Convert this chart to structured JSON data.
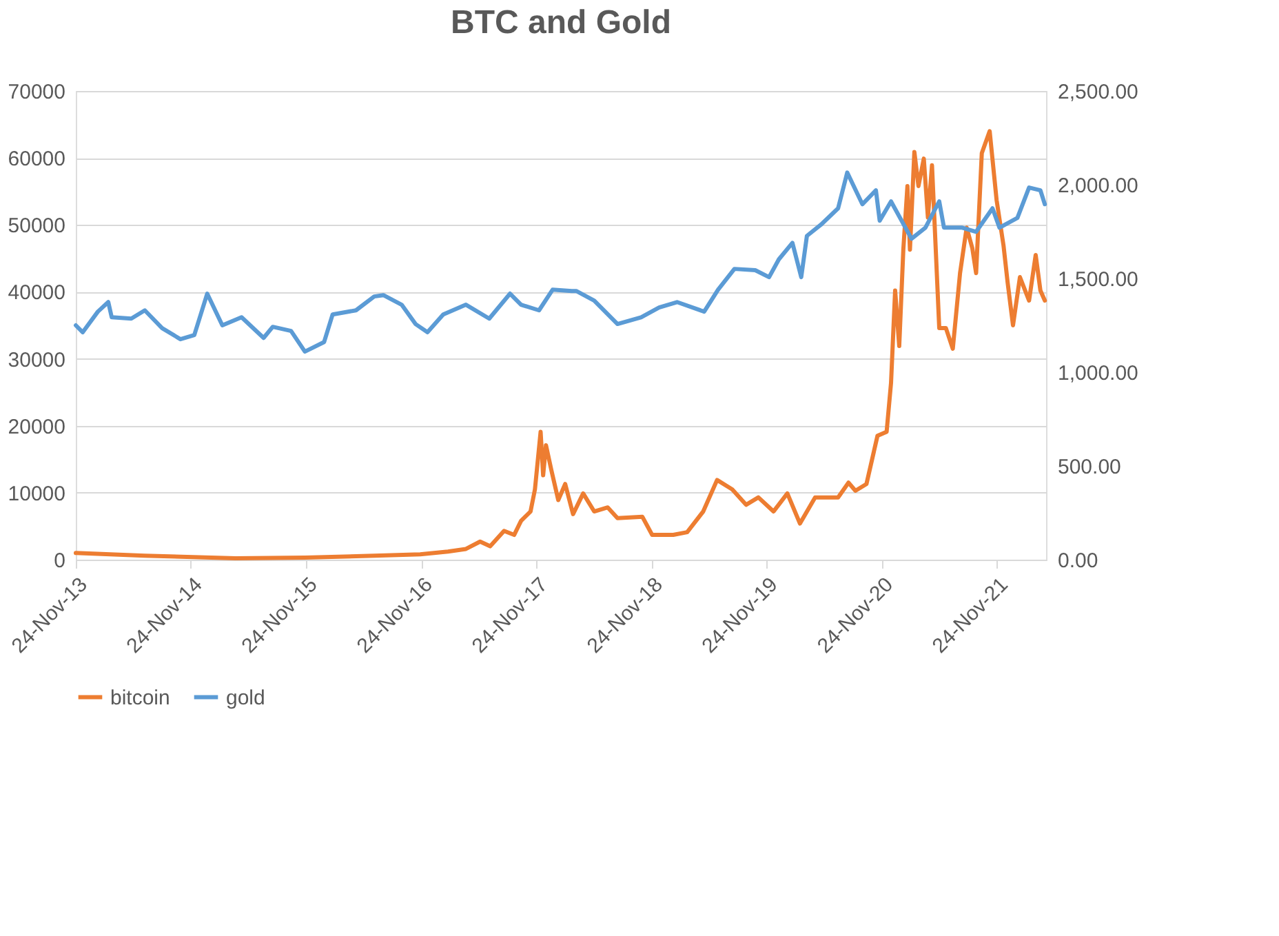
{
  "chart_data": {
    "type": "line",
    "title": "BTC and Gold",
    "xlim": [
      "2013-11-24",
      "2022-04-30"
    ],
    "xticks": [
      {
        "value": "2013-11-24",
        "label": "24-Nov-13"
      },
      {
        "value": "2014-11-24",
        "label": "24-Nov-14"
      },
      {
        "value": "2015-11-24",
        "label": "24-Nov-15"
      },
      {
        "value": "2016-11-24",
        "label": "24-Nov-16"
      },
      {
        "value": "2017-11-24",
        "label": "24-Nov-17"
      },
      {
        "value": "2018-11-24",
        "label": "24-Nov-18"
      },
      {
        "value": "2019-11-24",
        "label": "24-Nov-19"
      },
      {
        "value": "2020-11-24",
        "label": "24-Nov-20"
      },
      {
        "value": "2021-11-24",
        "label": "24-Nov-21"
      }
    ],
    "ylim": [
      0,
      70000
    ],
    "yticks": [
      0,
      10000,
      20000,
      30000,
      40000,
      50000,
      60000,
      70000
    ],
    "y2lim": [
      0,
      2500
    ],
    "y2ticks": [
      {
        "value": 0,
        "label": "0.00"
      },
      {
        "value": 500,
        "label": "500.00"
      },
      {
        "value": 1000,
        "label": "1,000.00"
      },
      {
        "value": 1500,
        "label": "1,500.00"
      },
      {
        "value": 2000,
        "label": "2,000.00"
      },
      {
        "value": 2500,
        "label": "2,500.00"
      }
    ],
    "grid": "y",
    "legend": "bottom",
    "marker": "none",
    "line_style": "solid",
    "series": [
      {
        "name": "bitcoin",
        "color": "#ed7d31",
        "axis": "y",
        "x": [
          "2013-11-24",
          "2014-07-01",
          "2015-04-15",
          "2015-11-21",
          "2016-06-28",
          "2016-11-21",
          "2017-02-17",
          "2017-04-15",
          "2017-05-30",
          "2017-07-01",
          "2017-08-14",
          "2017-09-15",
          "2017-10-07",
          "2017-11-06",
          "2017-11-20",
          "2017-12-08",
          "2017-12-16",
          "2017-12-25",
          "2018-01-11",
          "2018-02-02",
          "2018-02-24",
          "2018-03-21",
          "2018-04-22",
          "2018-05-27",
          "2018-07-09",
          "2018-08-09",
          "2018-10-27",
          "2018-11-27",
          "2019-02-02",
          "2019-03-18",
          "2019-05-08",
          "2019-06-21",
          "2019-08-08",
          "2019-09-21",
          "2019-10-30",
          "2019-12-17",
          "2020-01-30",
          "2020-03-10",
          "2020-04-27",
          "2020-07-09",
          "2020-08-11",
          "2020-09-02",
          "2020-10-07",
          "2020-11-11",
          "2020-12-10",
          "2020-12-24",
          "2021-01-06",
          "2021-01-19",
          "2021-02-01",
          "2021-02-14",
          "2021-02-22",
          "2021-03-08",
          "2021-03-21",
          "2021-04-07",
          "2021-04-20",
          "2021-05-03",
          "2021-05-26",
          "2021-06-16",
          "2021-07-08",
          "2021-07-31",
          "2021-08-21",
          "2021-09-08",
          "2021-09-20",
          "2021-10-08",
          "2021-11-02",
          "2021-11-24",
          "2021-12-16",
          "2021-12-29",
          "2022-01-15",
          "2022-02-06",
          "2022-03-07",
          "2022-03-28",
          "2022-04-12",
          "2022-04-26"
        ],
        "values": [
          1000,
          600,
          200,
          300,
          600,
          800,
          1200,
          1600,
          2700,
          2000,
          4300,
          3700,
          5800,
          7200,
          10500,
          19100,
          12600,
          17100,
          13400,
          8900,
          11300,
          6800,
          9900,
          7200,
          7800,
          6200,
          6400,
          3700,
          3700,
          4100,
          7200,
          11900,
          10500,
          8200,
          9300,
          7200,
          9900,
          5400,
          9300,
          9300,
          11500,
          10300,
          11300,
          18500,
          19100,
          26400,
          40200,
          31900,
          46300,
          55800,
          46300,
          60900,
          55800,
          59900,
          51100,
          58900,
          34600,
          34600,
          31500,
          42800,
          49600,
          46500,
          42800,
          60700,
          64000,
          53700,
          46900,
          41400,
          35000,
          42200,
          38700,
          45500,
          40200,
          38700
        ]
      },
      {
        "name": "gold",
        "color": "#5b9bd5",
        "axis": "y2",
        "x": [
          "2013-11-24",
          "2013-12-16",
          "2014-02-02",
          "2014-03-07",
          "2014-03-18",
          "2014-05-19",
          "2014-07-01",
          "2014-08-25",
          "2014-10-22",
          "2014-12-05",
          "2015-01-15",
          "2015-03-04",
          "2015-05-04",
          "2015-07-13",
          "2015-08-11",
          "2015-10-08",
          "2015-11-21",
          "2016-01-21",
          "2016-02-17",
          "2016-05-01",
          "2016-06-28",
          "2016-07-27",
          "2016-09-23",
          "2016-11-06",
          "2016-12-14",
          "2017-02-02",
          "2017-04-15",
          "2017-06-28",
          "2017-09-02",
          "2017-10-07",
          "2017-12-03",
          "2018-01-15",
          "2018-03-17",
          "2018-03-31",
          "2018-05-27",
          "2018-08-09",
          "2018-10-23",
          "2018-12-19",
          "2019-02-14",
          "2019-05-11",
          "2019-06-24",
          "2019-08-15",
          "2019-10-20",
          "2019-12-03",
          "2020-01-03",
          "2020-02-15",
          "2020-03-14",
          "2020-04-01",
          "2020-05-15",
          "2020-07-09",
          "2020-08-07",
          "2020-09-24",
          "2020-11-06",
          "2020-11-18",
          "2020-12-24",
          "2021-02-27",
          "2021-04-12",
          "2021-05-26",
          "2021-06-10",
          "2021-08-07",
          "2021-09-20",
          "2021-11-11",
          "2021-12-03",
          "2022-01-29",
          "2022-03-07",
          "2022-04-12",
          "2022-04-26"
        ],
        "values": [
          1250,
          1213,
          1323,
          1374,
          1293,
          1286,
          1330,
          1235,
          1176,
          1198,
          1419,
          1250,
          1293,
          1183,
          1242,
          1220,
          1110,
          1161,
          1308,
          1330,
          1404,
          1411,
          1360,
          1257,
          1213,
          1308,
          1360,
          1286,
          1419,
          1360,
          1330,
          1440,
          1433,
          1433,
          1382,
          1257,
          1293,
          1345,
          1374,
          1323,
          1440,
          1551,
          1544,
          1507,
          1602,
          1690,
          1507,
          1727,
          1786,
          1874,
          2065,
          1896,
          1970,
          1808,
          1911,
          1712,
          1771,
          1911,
          1771,
          1771,
          1749,
          1874,
          1771,
          1823,
          1985,
          1970,
          1896
        ]
      }
    ]
  }
}
